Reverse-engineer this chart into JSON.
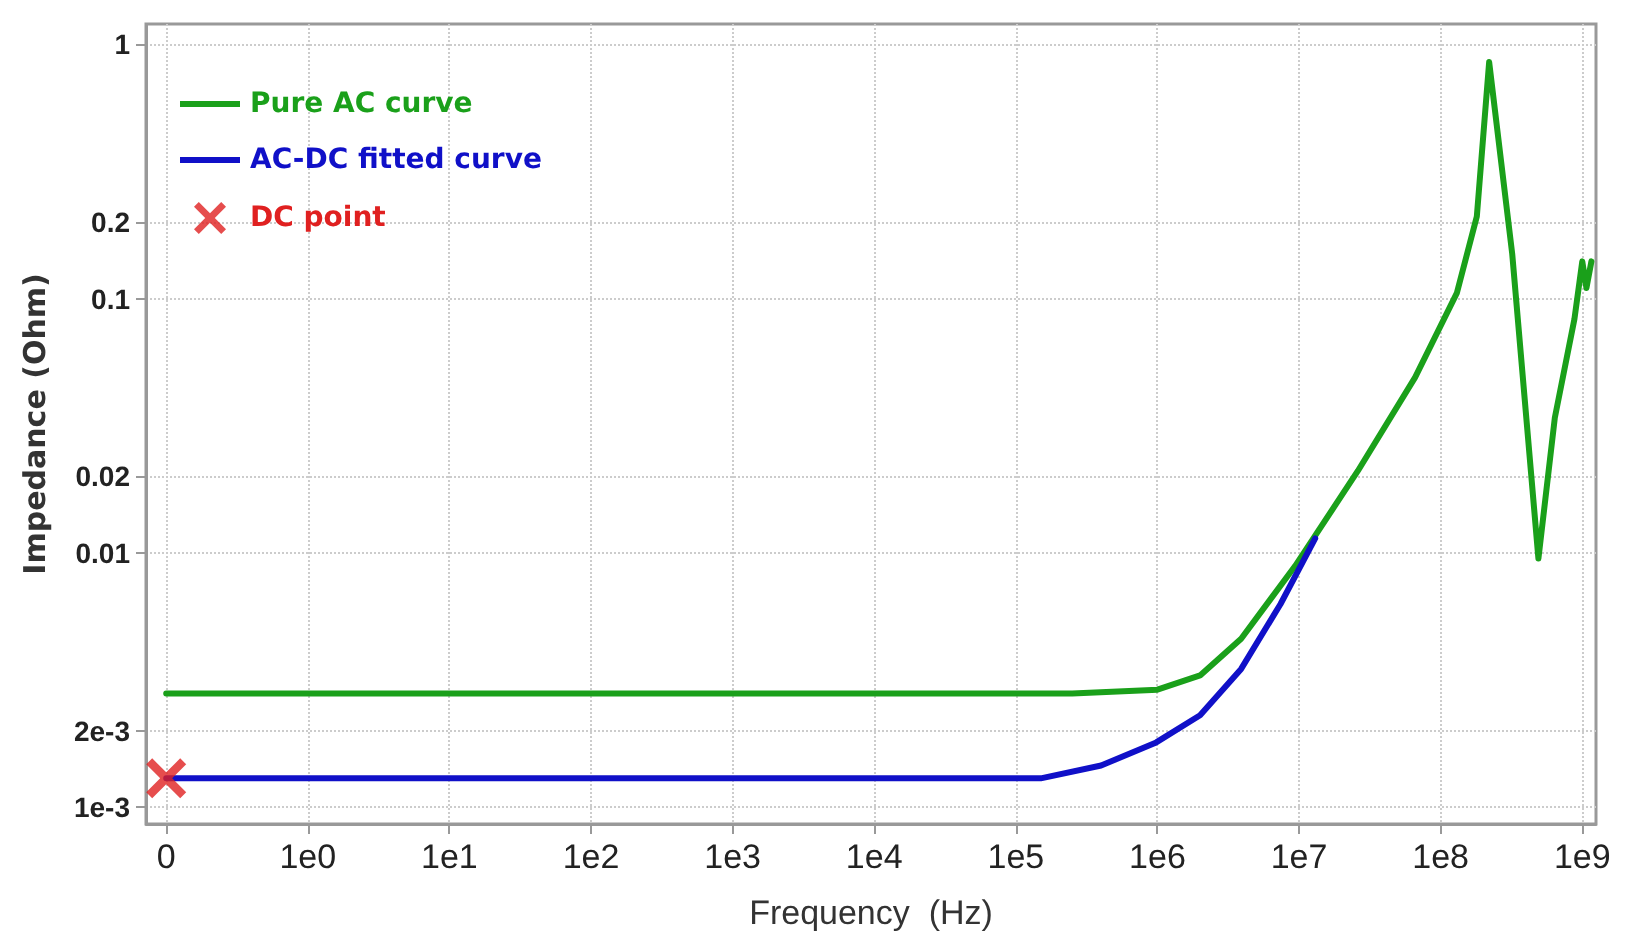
{
  "chart_data": {
    "type": "line",
    "xlabel": "Frequency  (Hz)",
    "ylabel": "Impedance (Ohm)",
    "log": "xy",
    "grid": true,
    "legend": "top left",
    "xlim": [
      0.072,
      1250000000.0
    ],
    "ylim": [
      0.00086,
      1.2
    ],
    "xticks": [
      {
        "value": 0.1,
        "label": "0"
      },
      {
        "value": 1,
        "label": "1e0"
      },
      {
        "value": 10,
        "label": "1e1"
      },
      {
        "value": 100,
        "label": "1e2"
      },
      {
        "value": 1000,
        "label": "1e3"
      },
      {
        "value": 10000,
        "label": "1e4"
      },
      {
        "value": 100000,
        "label": "1e5"
      },
      {
        "value": 1000000,
        "label": "1e6"
      },
      {
        "value": 10000000,
        "label": "1e7"
      },
      {
        "value": 100000000,
        "label": "1e8"
      },
      {
        "value": 1000000000,
        "label": "1e9"
      }
    ],
    "yticks": [
      {
        "value": 0.001,
        "label": "1e-3"
      },
      {
        "value": 0.002,
        "label": "2e-3"
      },
      0.01,
      0.02,
      0.1,
      0.2,
      1
    ],
    "series": [
      {
        "name": "Pure AC curve",
        "color": "#1aa01a",
        "x": [
          0.1,
          1,
          100,
          10000,
          250000,
          1000000,
          2000000,
          3900000,
          9400000,
          26000000,
          66000000,
          130000000,
          180000000,
          220000000,
          320000000,
          490000000,
          640000000,
          880000000,
          1000000000,
          1070000000,
          1160000000
        ],
        "values": [
          0.0028,
          0.0028,
          0.0028,
          0.0028,
          0.0028,
          0.0029,
          0.0033,
          0.0046,
          0.0089,
          0.021,
          0.049,
          0.105,
          0.21,
          0.85,
          0.15,
          0.0095,
          0.034,
          0.083,
          0.14,
          0.11,
          0.14
        ]
      },
      {
        "name": "AC-DC fitted curve",
        "color": "#1010c8",
        "x": [
          0.1,
          1,
          100,
          10000,
          150000,
          400000,
          980000,
          2000000,
          3900000,
          7400000,
          13000000
        ],
        "values": [
          0.0013,
          0.0013,
          0.0013,
          0.0013,
          0.0013,
          0.00146,
          0.0018,
          0.0023,
          0.0035,
          0.0063,
          0.0114
        ]
      },
      {
        "name": "DC point",
        "type": "scatter",
        "marker": "cross",
        "color": "#e02020",
        "x": [
          0.1
        ],
        "values": [
          0.0013
        ]
      }
    ]
  }
}
